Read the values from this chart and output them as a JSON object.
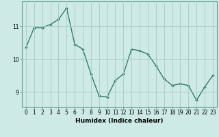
{
  "x": [
    0,
    1,
    2,
    3,
    4,
    5,
    6,
    7,
    8,
    9,
    10,
    11,
    12,
    13,
    14,
    15,
    16,
    17,
    18,
    19,
    20,
    21,
    22,
    23
  ],
  "y": [
    10.35,
    10.95,
    10.95,
    11.05,
    11.2,
    11.55,
    10.45,
    10.3,
    9.55,
    8.88,
    8.85,
    9.35,
    9.55,
    10.3,
    10.25,
    10.15,
    9.8,
    9.4,
    9.2,
    9.25,
    9.2,
    8.75,
    9.15,
    9.5
  ],
  "line_color": "#2e7d6e",
  "marker": "D",
  "marker_size": 1.8,
  "bg_color": "#ceeae6",
  "grid_color": "#aac8c4",
  "xlabel": "Humidex (Indice chaleur)",
  "xlim": [
    -0.5,
    23.5
  ],
  "ylim": [
    8.55,
    11.75
  ],
  "yticks": [
    9,
    10,
    11
  ],
  "xticks": [
    0,
    1,
    2,
    3,
    4,
    5,
    6,
    7,
    8,
    9,
    10,
    11,
    12,
    13,
    14,
    15,
    16,
    17,
    18,
    19,
    20,
    21,
    22,
    23
  ],
  "xlabel_fontsize": 6.5,
  "tick_fontsize": 5.5,
  "line_width": 1.0,
  "spine_color": "#5a9a93"
}
